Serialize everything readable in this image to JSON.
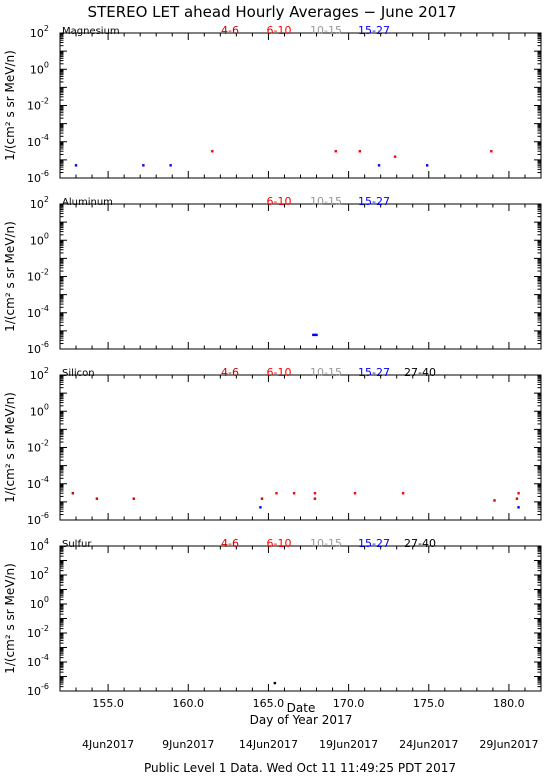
{
  "title": "STEREO LET ahead Hourly Averages − June 2017",
  "footer": "Public Level 1 Data. Wed Oct 11 11:49:25 PDT 2017",
  "xaxis": {
    "label": "Day of Year 2017",
    "date_label": "Date",
    "range": [
      152.0,
      182.0
    ],
    "major_ticks": [
      155.0,
      160.0,
      165.0,
      170.0,
      175.0,
      180.0
    ],
    "tick_labels": [
      "155.0",
      "160.0",
      "165.0",
      "170.0",
      "175.0",
      "180.0"
    ],
    "date_ticks": [
      155,
      160,
      165,
      170,
      175,
      180
    ],
    "date_tick_labels": [
      "4Jun2017",
      "9Jun2017",
      "14Jun2017",
      "19Jun2017",
      "24Jun2017",
      "29Jun2017"
    ]
  },
  "colors": {
    "4-6": "#cc0000",
    "6-10": "#ff0000",
    "10-15": "#999999",
    "15-27": "#0000ff",
    "27-40": "#000000"
  },
  "chart_data": [
    {
      "type": "scatter",
      "element": "Magnesium",
      "ylabel": "1/(cm² s sr MeV/n)",
      "ylog": true,
      "ylim_exp": [
        -6,
        2
      ],
      "ytick_exps": [
        -6,
        -4,
        -2,
        0,
        2
      ],
      "legend": [
        "4-6",
        "6-10",
        "10-15",
        "15-27"
      ],
      "series": [
        {
          "name": "4-6",
          "x": [],
          "y": []
        },
        {
          "name": "6-10",
          "x": [
            161.5,
            169.2,
            170.7,
            172.9,
            178.9
          ],
          "y": [
            3e-05,
            3e-05,
            3e-05,
            1.5e-05,
            3e-05
          ]
        },
        {
          "name": "10-15",
          "x": [],
          "y": []
        },
        {
          "name": "15-27",
          "x": [
            153.0,
            157.2,
            158.9,
            171.9,
            174.9
          ],
          "y": [
            5e-06,
            5e-06,
            5e-06,
            5e-06,
            5e-06
          ]
        }
      ]
    },
    {
      "type": "scatter",
      "element": "Aluminum",
      "ylabel": "1/(cm² s sr MeV/n)",
      "ylog": true,
      "ylim_exp": [
        -6,
        2
      ],
      "ytick_exps": [
        -6,
        -4,
        -2,
        0,
        2
      ],
      "legend": [
        "6-10",
        "10-15",
        "15-27"
      ],
      "series": [
        {
          "name": "6-10",
          "x": [],
          "y": []
        },
        {
          "name": "10-15",
          "x": [],
          "y": []
        },
        {
          "name": "15-27",
          "x": [
            167.8,
            167.9,
            168.0
          ],
          "y": [
            6e-06,
            6e-06,
            6e-06
          ]
        }
      ]
    },
    {
      "type": "scatter",
      "element": "Silicon",
      "ylabel": "1/(cm² s sr MeV/n)",
      "ylog": true,
      "ylim_exp": [
        -6,
        2
      ],
      "ytick_exps": [
        -6,
        -4,
        -2,
        0,
        2
      ],
      "legend": [
        "4-6",
        "6-10",
        "10-15",
        "15-27",
        "27-40"
      ],
      "series": [
        {
          "name": "4-6",
          "x": [
            152.8,
            154.3,
            156.6,
            164.6,
            167.9,
            179.1,
            180.5
          ],
          "y": [
            3e-05,
            1.5e-05,
            1.5e-05,
            1.5e-05,
            1.5e-05,
            1.2e-05,
            1.5e-05
          ]
        },
        {
          "name": "6-10",
          "x": [
            165.5,
            166.6,
            167.9,
            170.4,
            173.4,
            180.6
          ],
          "y": [
            3e-05,
            3e-05,
            3e-05,
            3e-05,
            3e-05,
            3e-05
          ]
        },
        {
          "name": "10-15",
          "x": [],
          "y": []
        },
        {
          "name": "15-27",
          "x": [
            164.5,
            180.6
          ],
          "y": [
            5e-06,
            5e-06
          ]
        },
        {
          "name": "27-40",
          "x": [],
          "y": []
        }
      ]
    },
    {
      "type": "scatter",
      "element": "Sulfur",
      "ylabel": "1/(cm² s sr MeV/n)",
      "ylog": true,
      "ylim_exp": [
        -6,
        4
      ],
      "ytick_exps": [
        -6,
        -4,
        -2,
        0,
        2,
        4
      ],
      "legend": [
        "4-6",
        "6-10",
        "10-15",
        "15-27",
        "27-40"
      ],
      "series": [
        {
          "name": "4-6",
          "x": [],
          "y": []
        },
        {
          "name": "6-10",
          "x": [],
          "y": []
        },
        {
          "name": "10-15",
          "x": [],
          "y": []
        },
        {
          "name": "15-27",
          "x": [],
          "y": []
        },
        {
          "name": "27-40",
          "x": [
            165.4
          ],
          "y": [
            3.5e-06
          ]
        }
      ]
    }
  ]
}
